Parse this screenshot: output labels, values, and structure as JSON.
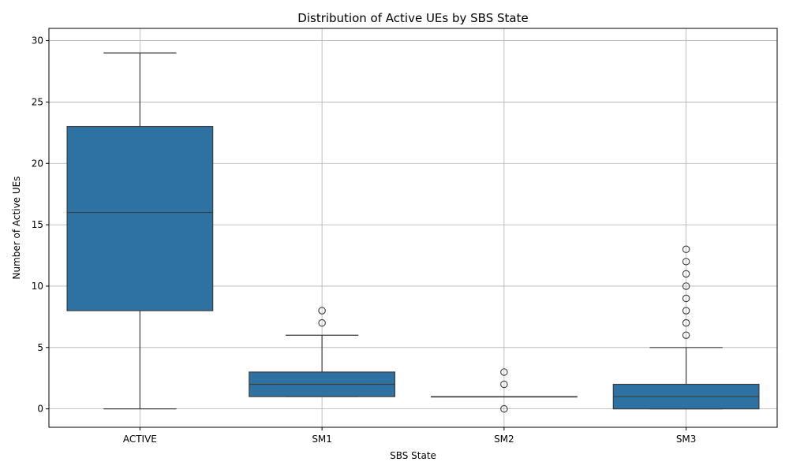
{
  "chart_data": {
    "type": "box",
    "title": "Distribution of Active UEs by SBS State",
    "xlabel": "SBS State",
    "ylabel": "Number of Active UEs",
    "ylim": [
      -1.5,
      31
    ],
    "yticks": [
      0,
      5,
      10,
      15,
      20,
      25,
      30
    ],
    "grid": true,
    "box_color": "#2e72a4",
    "edge_color": "#3d3d3d",
    "categories": [
      "ACTIVE",
      "SM1",
      "SM2",
      "SM3"
    ],
    "boxes": [
      {
        "category": "ACTIVE",
        "whisker_low": 0,
        "q1": 8,
        "median": 16,
        "q3": 23,
        "whisker_high": 29,
        "outliers": []
      },
      {
        "category": "SM1",
        "whisker_low": 1,
        "q1": 1,
        "median": 2,
        "q3": 3,
        "whisker_high": 6,
        "outliers": [
          7,
          8
        ]
      },
      {
        "category": "SM2",
        "whisker_low": 1,
        "q1": 1,
        "median": 1,
        "q3": 1,
        "whisker_high": 1,
        "outliers": [
          0,
          2,
          3
        ]
      },
      {
        "category": "SM3",
        "whisker_low": 0,
        "q1": 0,
        "median": 1,
        "q3": 2,
        "whisker_high": 5,
        "outliers": [
          6,
          7,
          8,
          9,
          10,
          11,
          12,
          13
        ]
      }
    ]
  }
}
